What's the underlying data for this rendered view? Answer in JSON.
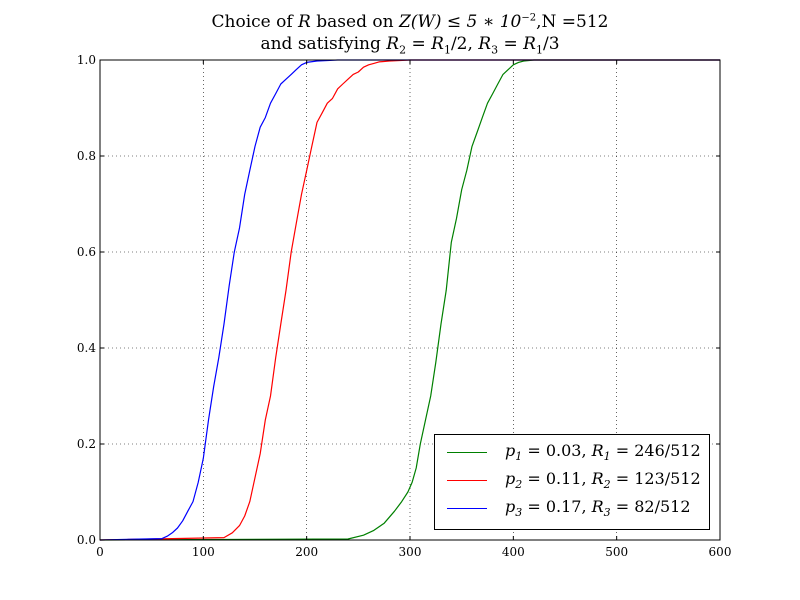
{
  "title": {
    "line1": {
      "pre": "Choice of ",
      "var_r": "R",
      "mid": " based on ",
      "expr": "Z(W) ≤ 5 ∗ 10",
      "exp": "−2",
      "post": ",N =512"
    },
    "line2": {
      "pre": "and satisfying ",
      "r2": "R",
      "r2_sub": "2",
      "eq1": " = ",
      "r1a": "R",
      "r1a_sub": "1",
      "div2": "/2, ",
      "r3": "R",
      "r3_sub": "3",
      "eq2": " = ",
      "r1b": "R",
      "r1b_sub": "1",
      "div3": "/3"
    }
  },
  "chart_data": {
    "type": "line",
    "xlim": [
      0,
      600
    ],
    "ylim": [
      0,
      1.0
    ],
    "x_ticks": [
      "0",
      "100",
      "200",
      "300",
      "400",
      "500",
      "600"
    ],
    "y_ticks": [
      "0.0",
      "0.2",
      "0.4",
      "0.6",
      "0.8",
      "1.0"
    ],
    "grid": true,
    "grid_style": "dotted",
    "legend_position": "lower-right",
    "series": [
      {
        "name": "p1 = 0.03, R1 = 246/512",
        "label_parts": {
          "p": "p",
          "p_sub": "1",
          "pval": " = 0.03, ",
          "r": "R",
          "r_sub": "1",
          "rval": " = 246/512"
        },
        "color": "#008000",
        "x": [
          0,
          240,
          255,
          265,
          275,
          285,
          292,
          298,
          302,
          306,
          310,
          315,
          320,
          325,
          330,
          335,
          340,
          345,
          350,
          355,
          360,
          365,
          370,
          375,
          380,
          385,
          390,
          395,
          400,
          405,
          410,
          420,
          430,
          600
        ],
        "y": [
          0,
          0.002,
          0.01,
          0.02,
          0.035,
          0.06,
          0.08,
          0.1,
          0.12,
          0.15,
          0.2,
          0.25,
          0.3,
          0.37,
          0.45,
          0.52,
          0.62,
          0.67,
          0.73,
          0.77,
          0.82,
          0.85,
          0.88,
          0.91,
          0.93,
          0.95,
          0.97,
          0.98,
          0.99,
          0.995,
          0.998,
          1.0,
          1.0,
          1.0
        ]
      },
      {
        "name": "p2 = 0.11, R2 = 123/512",
        "label_parts": {
          "p": "p",
          "p_sub": "2",
          "pval": " = 0.11, ",
          "r": "R",
          "r_sub": "2",
          "rval": " = 123/512"
        },
        "color": "#ff0000",
        "x": [
          0,
          120,
          128,
          135,
          140,
          145,
          150,
          155,
          160,
          165,
          170,
          175,
          180,
          185,
          190,
          195,
          200,
          205,
          210,
          215,
          220,
          225,
          230,
          235,
          240,
          245,
          250,
          255,
          260,
          265,
          270,
          280,
          290,
          300,
          310,
          600
        ],
        "y": [
          0,
          0.005,
          0.015,
          0.03,
          0.05,
          0.08,
          0.13,
          0.18,
          0.25,
          0.3,
          0.38,
          0.45,
          0.52,
          0.6,
          0.66,
          0.72,
          0.77,
          0.82,
          0.87,
          0.89,
          0.91,
          0.92,
          0.94,
          0.95,
          0.96,
          0.97,
          0.975,
          0.985,
          0.99,
          0.993,
          0.996,
          0.998,
          0.999,
          1.0,
          1.0,
          1.0
        ]
      },
      {
        "name": "p3 = 0.17, R3 = 82/512",
        "label_parts": {
          "p": "p",
          "p_sub": "3",
          "pval": " = 0.17, ",
          "r": "R",
          "r_sub": "3",
          "rval": " = 82/512"
        },
        "color": "#0000ff",
        "x": [
          0,
          60,
          65,
          70,
          75,
          80,
          85,
          90,
          95,
          100,
          105,
          110,
          115,
          120,
          125,
          130,
          135,
          140,
          145,
          150,
          155,
          160,
          165,
          170,
          175,
          180,
          185,
          190,
          195,
          200,
          210,
          220,
          230,
          600
        ],
        "y": [
          0,
          0.003,
          0.008,
          0.015,
          0.025,
          0.04,
          0.06,
          0.08,
          0.12,
          0.17,
          0.25,
          0.32,
          0.38,
          0.45,
          0.53,
          0.6,
          0.65,
          0.72,
          0.77,
          0.82,
          0.86,
          0.88,
          0.91,
          0.93,
          0.95,
          0.96,
          0.97,
          0.98,
          0.99,
          0.995,
          0.998,
          0.999,
          1.0,
          1.0
        ]
      }
    ]
  }
}
